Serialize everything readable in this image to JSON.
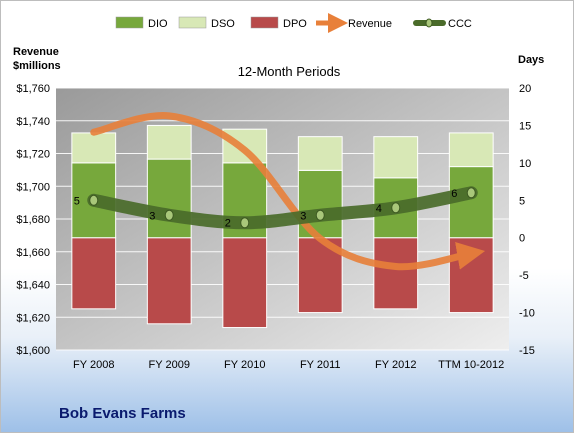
{
  "chart_data": {
    "type": "bar",
    "title": "12-Month Periods",
    "company": "Bob Evans Farms",
    "ylabel_left": [
      "Revenue",
      "$millions"
    ],
    "ylabel_right": "Days",
    "categories": [
      "FY 2008",
      "FY 2009",
      "FY 2010",
      "FY 2011",
      "FY 2012",
      "TTM 10-2012"
    ],
    "y_left": {
      "min": 1600,
      "max": 1760,
      "step": 20,
      "tick_labels": [
        "$1,600",
        "$1,620",
        "$1,640",
        "$1,660",
        "$1,680",
        "$1,700",
        "$1,720",
        "$1,740",
        "$1,760"
      ]
    },
    "y_right": {
      "min": -15,
      "max": 20,
      "step": 5,
      "tick_labels": [
        "-15",
        "-10",
        "-5",
        "0",
        "5",
        "10",
        "15",
        "20"
      ]
    },
    "series": [
      {
        "name": "DIO",
        "kind": "bar",
        "axis": "right",
        "color": "#77a83c",
        "values": [
          10,
          10.5,
          10,
          9,
          8,
          9.5
        ]
      },
      {
        "name": "DSO",
        "kind": "bar",
        "axis": "right",
        "color": "#d8e8b6",
        "values": [
          4,
          4.5,
          4.5,
          4.5,
          5.5,
          4.5
        ]
      },
      {
        "name": "DPO",
        "kind": "bar",
        "axis": "right",
        "color": "#b84a4a",
        "values": [
          -9.5,
          -11.5,
          -12,
          -10,
          -9.5,
          -10
        ]
      },
      {
        "name": "Revenue",
        "kind": "line",
        "axis": "left",
        "color": "#e8803a",
        "values": [
          1733,
          1743,
          1722,
          1668,
          1651,
          1659
        ]
      },
      {
        "name": "CCC",
        "kind": "line",
        "axis": "right",
        "color": "#4a6b2a",
        "values": [
          5,
          3,
          2,
          3,
          4,
          6
        ],
        "data_labels": [
          "5",
          "3",
          "2",
          "3",
          "4",
          "6"
        ]
      }
    ],
    "legend": [
      "DIO",
      "DSO",
      "DPO",
      "Revenue",
      "CCC"
    ],
    "legend_placement": "top",
    "grid": true
  }
}
